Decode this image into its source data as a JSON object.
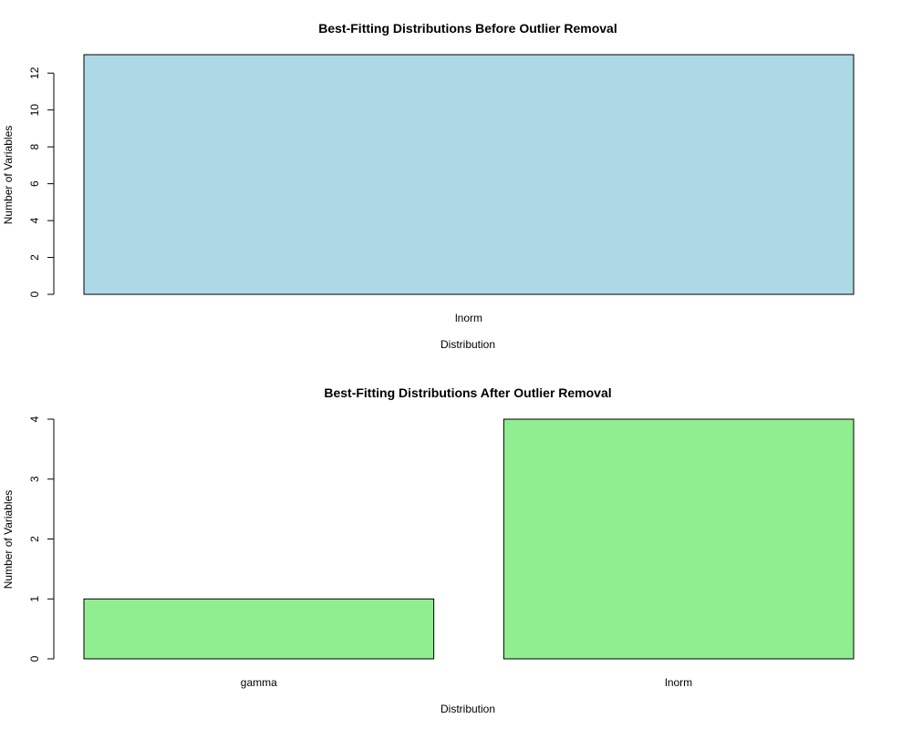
{
  "chart_data": [
    {
      "type": "bar",
      "title": "Best-Fitting Distributions Before Outlier Removal",
      "xlabel": "Distribution",
      "ylabel": "Number of Variables",
      "categories": [
        "lnorm"
      ],
      "values": [
        13
      ],
      "ylim": [
        0,
        13
      ],
      "yticks": [
        0,
        2,
        4,
        6,
        8,
        10,
        12
      ],
      "bar_color": "#ADD8E6",
      "grid": false,
      "legend": "none"
    },
    {
      "type": "bar",
      "title": "Best-Fitting Distributions After Outlier Removal",
      "xlabel": "Distribution",
      "ylabel": "Number of Variables",
      "categories": [
        "gamma",
        "lnorm"
      ],
      "values": [
        1,
        4
      ],
      "ylim": [
        0,
        4
      ],
      "yticks": [
        0,
        1,
        2,
        3,
        4
      ],
      "bar_color": "#90EE90",
      "grid": false,
      "legend": "none"
    }
  ]
}
